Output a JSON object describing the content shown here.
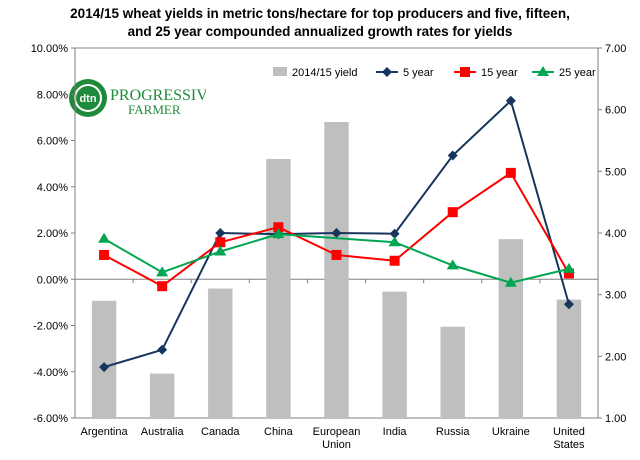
{
  "chart_data": {
    "type": "bar",
    "title_line1": "2014/15 wheat yields in metric tons/hectare for top producers and five, fifteen,",
    "title_line2": "and 25 year compounded annualized growth rates for yields",
    "categories": [
      [
        "Argentina"
      ],
      [
        "Australia"
      ],
      [
        "Canada"
      ],
      [
        "China"
      ],
      [
        "European",
        "Union"
      ],
      [
        "India"
      ],
      [
        "Russia"
      ],
      [
        "Ukraine"
      ],
      [
        "United",
        "States"
      ]
    ],
    "bar_series": {
      "name": "2014/15 yield",
      "axis": "right",
      "values": [
        2.9,
        1.72,
        3.1,
        5.2,
        5.8,
        3.05,
        2.48,
        3.9,
        2.92
      ]
    },
    "line_series": [
      {
        "name": "5 year",
        "axis": "left",
        "color": "#17365d",
        "marker": "diamond",
        "values": [
          -3.8,
          -3.05,
          2.0,
          1.95,
          2.0,
          1.97,
          5.35,
          7.72,
          -1.08
        ]
      },
      {
        "name": "15 year",
        "axis": "left",
        "color": "#ff0000",
        "marker": "square",
        "values": [
          1.05,
          -0.3,
          1.6,
          2.25,
          1.05,
          0.8,
          2.9,
          4.6,
          0.25
        ]
      },
      {
        "name": "25 year",
        "axis": "left",
        "color": "#00a651",
        "marker": "triangle",
        "values": [
          1.75,
          0.3,
          1.2,
          1.95,
          null,
          1.6,
          0.6,
          -0.15,
          0.45
        ]
      }
    ],
    "left_axis": {
      "min": -6,
      "max": 10,
      "step": 2,
      "ticks": [
        "-6.00%",
        "-4.00%",
        "-2.00%",
        "0.00%",
        "2.00%",
        "4.00%",
        "6.00%",
        "8.00%",
        "10.00%"
      ]
    },
    "right_axis": {
      "min": 1,
      "max": 7,
      "step": 1,
      "ticks": [
        "1.00",
        "2.00",
        "3.00",
        "4.00",
        "5.00",
        "6.00",
        "7.00"
      ]
    },
    "bar_color": "#bfbfbf",
    "legend_position": "top-right",
    "grid": false
  },
  "logo": {
    "brand": "dtn",
    "line1": "PROGRESSIVE",
    "line2": "FARMER"
  }
}
